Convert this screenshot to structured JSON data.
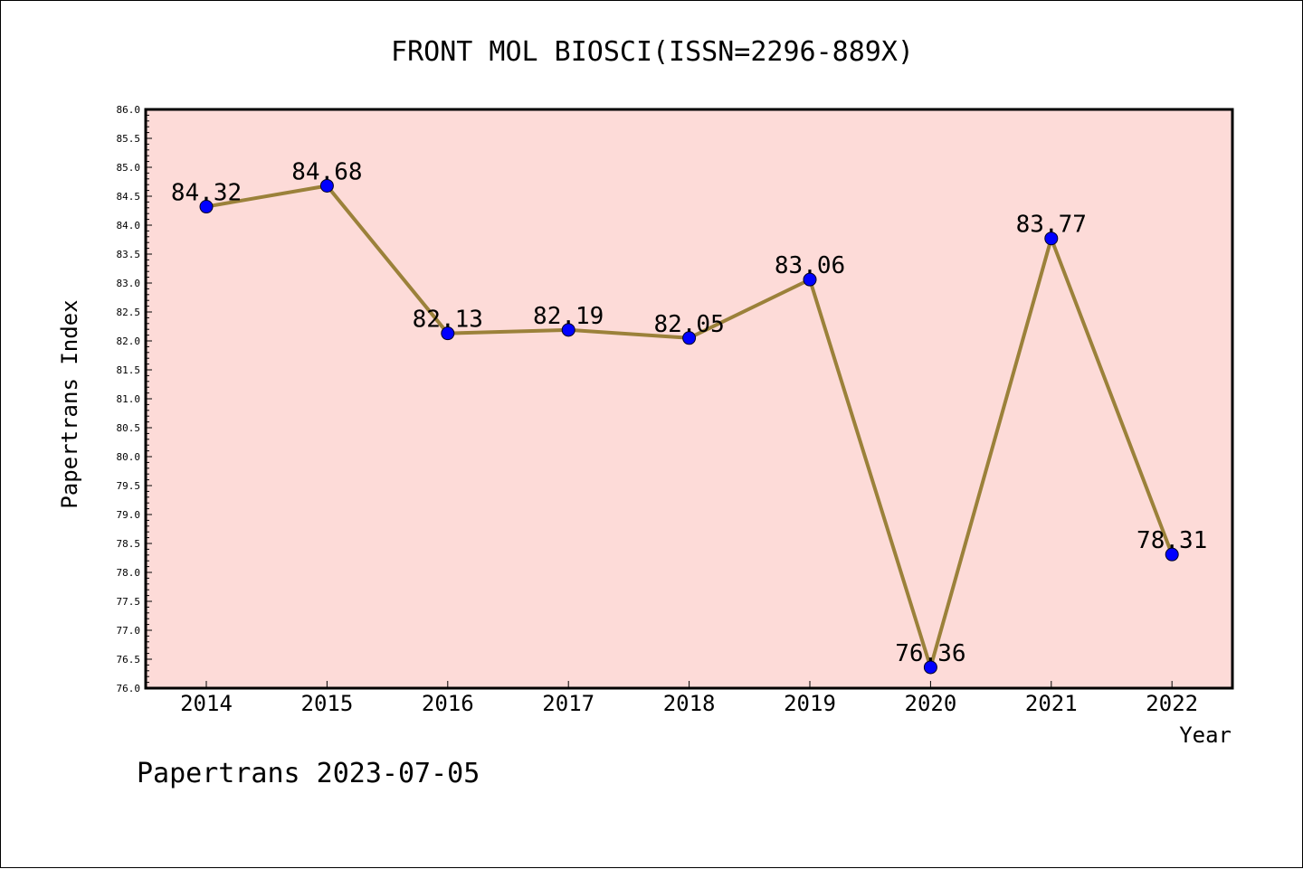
{
  "footer_text": "Papertrans 2023-07-05",
  "colors": {
    "plot_background": "#fddbd8",
    "line": "#9b813a",
    "marker": "#0000ff"
  },
  "chart_data": {
    "type": "line",
    "title": "FRONT MOL BIOSCI(ISSN=2296-889X)",
    "xlabel": "Year",
    "ylabel": "Papertrans Index",
    "categories": [
      "2014",
      "2015",
      "2016",
      "2017",
      "2018",
      "2019",
      "2020",
      "2021",
      "2022"
    ],
    "series": [
      {
        "values": [
          84.32,
          84.68,
          82.13,
          82.19,
          82.05,
          83.06,
          76.36,
          83.77,
          78.31
        ],
        "labels": [
          "84.32",
          "84.68",
          "82.13",
          "82.19",
          "82.05",
          "83.06",
          "76.36",
          "83.77",
          "78.31"
        ]
      }
    ],
    "ylim": [
      76.0,
      86.0
    ],
    "y_major_step": 0.5,
    "y_tick_labels": [
      "76.0",
      "76.5",
      "77.0",
      "77.5",
      "78.0",
      "78.5",
      "79.0",
      "79.5",
      "80.0",
      "80.5",
      "81.0",
      "81.5",
      "82.0",
      "82.5",
      "83.0",
      "83.5",
      "84.0",
      "84.5",
      "85.0",
      "85.5",
      "86.0"
    ],
    "grid": false,
    "legend": "none"
  }
}
